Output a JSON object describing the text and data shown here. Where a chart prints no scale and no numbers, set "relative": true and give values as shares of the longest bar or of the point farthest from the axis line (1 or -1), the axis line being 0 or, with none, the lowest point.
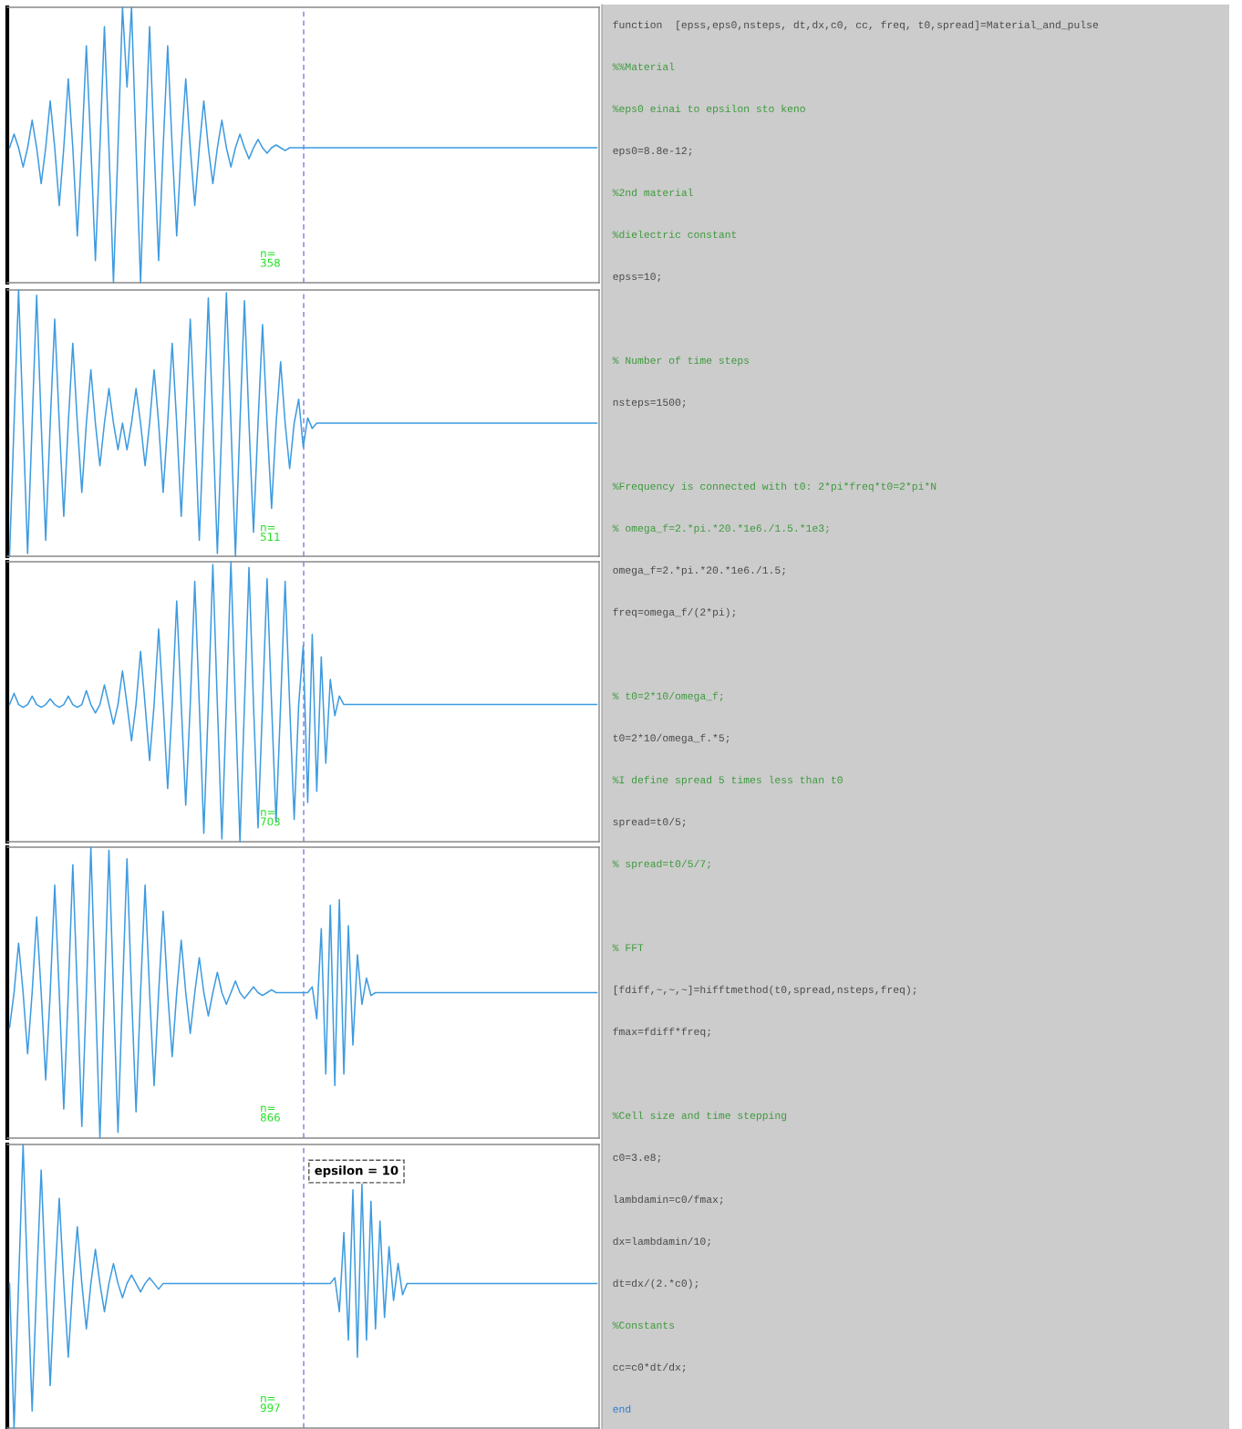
{
  "chart_data": [
    {
      "type": "line",
      "relative": true,
      "tick_labels": false,
      "categories": [
        null,
        null,
        null,
        null,
        null,
        null,
        null,
        null,
        null,
        null,
        null,
        null,
        null,
        null,
        null,
        null,
        null,
        null,
        null,
        null,
        null,
        null,
        null,
        null,
        null,
        null,
        null,
        null,
        null,
        null,
        null,
        null,
        null,
        null,
        null,
        null,
        null,
        null,
        null,
        null,
        null,
        null,
        null,
        null,
        null,
        null,
        null,
        null,
        null,
        null,
        null,
        null,
        null,
        null,
        null,
        null,
        null,
        null,
        null,
        null,
        null,
        null,
        null,
        null,
        null,
        null,
        null,
        null,
        null,
        null,
        null,
        null,
        null,
        null,
        null,
        null,
        null,
        null,
        null,
        null,
        null,
        null,
        null,
        null,
        null,
        null,
        null,
        null,
        null,
        null,
        null,
        null,
        null,
        null,
        null,
        null,
        null,
        null,
        null,
        null,
        null,
        null,
        null,
        null,
        null,
        null,
        null,
        null,
        null,
        null,
        null,
        null,
        null,
        null,
        null,
        null,
        null,
        null,
        null,
        null,
        null,
        null,
        null,
        null,
        null,
        null,
        null,
        null,
        null,
        null,
        null
      ],
      "series": [
        {
          "color": "#3d9be0",
          "values": [
            0.49,
            0.54,
            0.49,
            0.42,
            0.49,
            0.59,
            0.49,
            0.36,
            0.49,
            0.66,
            0.49,
            0.28,
            0.49,
            0.74,
            0.49,
            0.17,
            0.49,
            0.86,
            0.49,
            0.08,
            0.49,
            0.93,
            0.49,
            0,
            0.49,
            1,
            0.71,
            1,
            0.49,
            0,
            0.49,
            0.93,
            0.49,
            0.08,
            0.49,
            0.86,
            0.49,
            0.17,
            0.49,
            0.74,
            0.49,
            0.28,
            0.49,
            0.66,
            0.49,
            0.36,
            0.49,
            0.59,
            0.49,
            0.42,
            0.49,
            0.54,
            0.49,
            0.45,
            0.49,
            0.52,
            0.49,
            0.47,
            0.49,
            0.5,
            0.49,
            0.48,
            0.49,
            0.49,
            0.49,
            0.49,
            0.49,
            0.49,
            0.49,
            0.49,
            0.49,
            0.49,
            0.49,
            0.49,
            0.49,
            0.49,
            0.49,
            0.49,
            0.49,
            0.49,
            0.49,
            0.49,
            0.49,
            0.49,
            0.49,
            0.49,
            0.49,
            0.49,
            0.49,
            0.49,
            0.49,
            0.49,
            0.49,
            0.49,
            0.49,
            0.49,
            0.49,
            0.49,
            0.49,
            0.49,
            0.49,
            0.49,
            0.49,
            0.49,
            0.49,
            0.49,
            0.49,
            0.49,
            0.49,
            0.49,
            0.49,
            0.49,
            0.49,
            0.49,
            0.49,
            0.49,
            0.49,
            0.49,
            0.49,
            0.49,
            0.49,
            0.49,
            0.49,
            0.49,
            0.49,
            0.49,
            0.49,
            0.49,
            0.49,
            0.49,
            0.49
          ]
        }
      ],
      "annotations": [
        "n=\n358"
      ]
    },
    {
      "type": "line",
      "relative": true,
      "tick_labels": false,
      "categories": [
        null,
        null,
        null,
        null,
        null,
        null,
        null,
        null,
        null,
        null,
        null,
        null,
        null,
        null,
        null,
        null,
        null,
        null,
        null,
        null,
        null,
        null,
        null,
        null,
        null,
        null,
        null,
        null,
        null,
        null,
        null,
        null,
        null,
        null,
        null,
        null,
        null,
        null,
        null,
        null,
        null,
        null,
        null,
        null,
        null,
        null,
        null,
        null,
        null,
        null,
        null,
        null,
        null,
        null,
        null,
        null,
        null,
        null,
        null,
        null,
        null,
        null,
        null,
        null,
        null,
        null,
        null,
        null,
        null,
        null,
        null,
        null,
        null,
        null,
        null,
        null,
        null,
        null,
        null,
        null,
        null,
        null,
        null,
        null,
        null,
        null,
        null,
        null,
        null,
        null,
        null,
        null,
        null,
        null,
        null,
        null,
        null,
        null,
        null,
        null,
        null,
        null,
        null,
        null,
        null,
        null,
        null,
        null,
        null,
        null,
        null,
        null,
        null,
        null,
        null,
        null,
        null,
        null,
        null,
        null,
        null,
        null,
        null,
        null,
        null,
        null,
        null,
        null,
        null,
        null,
        null
      ],
      "series": [
        {
          "color": "#3d9be0",
          "values": [
            0,
            0.5,
            1,
            0.5,
            0.01,
            0.5,
            0.98,
            0.5,
            0.06,
            0.5,
            0.89,
            0.5,
            0.15,
            0.5,
            0.8,
            0.5,
            0.24,
            0.5,
            0.7,
            0.5,
            0.34,
            0.5,
            0.63,
            0.5,
            0.4,
            0.5,
            0.4,
            0.5,
            0.63,
            0.5,
            0.34,
            0.5,
            0.7,
            0.5,
            0.24,
            0.5,
            0.8,
            0.5,
            0.15,
            0.5,
            0.89,
            0.5,
            0.06,
            0.5,
            0.97,
            0.5,
            0.01,
            0.5,
            0.99,
            0.5,
            0,
            0.5,
            0.96,
            0.5,
            0.09,
            0.5,
            0.87,
            0.5,
            0.18,
            0.5,
            0.73,
            0.5,
            0.33,
            0.5,
            0.59,
            0.41,
            0.52,
            0.48,
            0.5,
            0.5,
            0.5,
            0.5,
            0.5,
            0.5,
            0.5,
            0.5,
            0.5,
            0.5,
            0.5,
            0.5,
            0.5,
            0.5,
            0.5,
            0.5,
            0.5,
            0.5,
            0.5,
            0.5,
            0.5,
            0.5,
            0.5,
            0.5,
            0.5,
            0.5,
            0.5,
            0.5,
            0.5,
            0.5,
            0.5,
            0.5,
            0.5,
            0.5,
            0.5,
            0.5,
            0.5,
            0.5,
            0.5,
            0.5,
            0.5,
            0.5,
            0.5,
            0.5,
            0.5,
            0.5,
            0.5,
            0.5,
            0.5,
            0.5,
            0.5,
            0.5,
            0.5,
            0.5,
            0.5,
            0.5,
            0.5,
            0.5,
            0.5,
            0.5,
            0.5,
            0.5,
            0.5
          ]
        }
      ],
      "annotations": [
        "n=\n511"
      ]
    },
    {
      "type": "line",
      "relative": true,
      "tick_labels": false,
      "categories": [
        null,
        null,
        null,
        null,
        null,
        null,
        null,
        null,
        null,
        null,
        null,
        null,
        null,
        null,
        null,
        null,
        null,
        null,
        null,
        null,
        null,
        null,
        null,
        null,
        null,
        null,
        null,
        null,
        null,
        null,
        null,
        null,
        null,
        null,
        null,
        null,
        null,
        null,
        null,
        null,
        null,
        null,
        null,
        null,
        null,
        null,
        null,
        null,
        null,
        null,
        null,
        null,
        null,
        null,
        null,
        null,
        null,
        null,
        null,
        null,
        null,
        null,
        null,
        null,
        null,
        null,
        null,
        null,
        null,
        null,
        null,
        null,
        null,
        null,
        null,
        null,
        null,
        null,
        null,
        null,
        null,
        null,
        null,
        null,
        null,
        null,
        null,
        null,
        null,
        null,
        null,
        null,
        null,
        null,
        null,
        null,
        null,
        null,
        null,
        null,
        null,
        null,
        null,
        null,
        null,
        null,
        null,
        null,
        null,
        null,
        null,
        null,
        null,
        null,
        null,
        null,
        null,
        null,
        null,
        null,
        null,
        null,
        null,
        null,
        null,
        null,
        null,
        null,
        null,
        null,
        null
      ],
      "series": [
        {
          "color": "#3d9be0",
          "values": [
            0.49,
            0.53,
            0.49,
            0.48,
            0.49,
            0.52,
            0.49,
            0.48,
            0.49,
            0.51,
            0.49,
            0.48,
            0.49,
            0.52,
            0.49,
            0.48,
            0.49,
            0.54,
            0.49,
            0.46,
            0.49,
            0.56,
            0.49,
            0.42,
            0.49,
            0.61,
            0.49,
            0.36,
            0.49,
            0.68,
            0.49,
            0.29,
            0.49,
            0.76,
            0.49,
            0.19,
            0.49,
            0.86,
            0.49,
            0.13,
            0.49,
            0.93,
            0.49,
            0.03,
            0.49,
            0.99,
            0.49,
            0.01,
            0.49,
            1,
            0.49,
            0,
            0.49,
            0.98,
            0.49,
            0.05,
            0.49,
            0.94,
            0.49,
            0.07,
            0.49,
            0.93,
            0.49,
            0.08,
            0.49,
            0.7,
            0.14,
            0.74,
            0.18,
            0.66,
            0.28,
            0.58,
            0.45,
            0.52,
            0.49,
            0.49,
            0.49,
            0.49,
            0.49,
            0.49,
            0.49,
            0.49,
            0.49,
            0.49,
            0.49,
            0.49,
            0.49,
            0.49,
            0.49,
            0.49,
            0.49,
            0.49,
            0.49,
            0.49,
            0.49,
            0.49,
            0.49,
            0.49,
            0.49,
            0.49,
            0.49,
            0.49,
            0.49,
            0.49,
            0.49,
            0.49,
            0.49,
            0.49,
            0.49,
            0.49,
            0.49,
            0.49,
            0.49,
            0.49,
            0.49,
            0.49,
            0.49,
            0.49,
            0.49,
            0.49,
            0.49,
            0.49,
            0.49,
            0.49,
            0.49,
            0.49,
            0.49,
            0.49,
            0.49,
            0.49,
            0.49
          ]
        }
      ],
      "annotations": [
        "n=\n703"
      ]
    },
    {
      "type": "line",
      "relative": true,
      "tick_labels": false,
      "categories": [
        null,
        null,
        null,
        null,
        null,
        null,
        null,
        null,
        null,
        null,
        null,
        null,
        null,
        null,
        null,
        null,
        null,
        null,
        null,
        null,
        null,
        null,
        null,
        null,
        null,
        null,
        null,
        null,
        null,
        null,
        null,
        null,
        null,
        null,
        null,
        null,
        null,
        null,
        null,
        null,
        null,
        null,
        null,
        null,
        null,
        null,
        null,
        null,
        null,
        null,
        null,
        null,
        null,
        null,
        null,
        null,
        null,
        null,
        null,
        null,
        null,
        null,
        null,
        null,
        null,
        null,
        null,
        null,
        null,
        null,
        null,
        null,
        null,
        null,
        null,
        null,
        null,
        null,
        null,
        null,
        null,
        null,
        null,
        null,
        null,
        null,
        null,
        null,
        null,
        null,
        null,
        null,
        null,
        null,
        null,
        null,
        null,
        null,
        null,
        null,
        null,
        null,
        null,
        null,
        null,
        null,
        null,
        null,
        null,
        null,
        null,
        null,
        null,
        null,
        null,
        null,
        null,
        null,
        null,
        null,
        null,
        null,
        null,
        null,
        null,
        null,
        null,
        null,
        null,
        null,
        null
      ],
      "series": [
        {
          "color": "#3d9be0",
          "values": [
            0.38,
            0.5,
            0.67,
            0.5,
            0.29,
            0.5,
            0.76,
            0.5,
            0.2,
            0.5,
            0.87,
            0.5,
            0.1,
            0.5,
            0.94,
            0.5,
            0.04,
            0.5,
            1,
            0.5,
            0,
            0.5,
            0.99,
            0.5,
            0.02,
            0.5,
            0.96,
            0.5,
            0.09,
            0.5,
            0.87,
            0.5,
            0.18,
            0.5,
            0.78,
            0.5,
            0.28,
            0.5,
            0.68,
            0.5,
            0.36,
            0.5,
            0.62,
            0.5,
            0.42,
            0.5,
            0.57,
            0.5,
            0.46,
            0.5,
            0.54,
            0.5,
            0.48,
            0.5,
            0.52,
            0.5,
            0.49,
            0.5,
            0.51,
            0.5,
            0.5,
            0.5,
            0.5,
            0.5,
            0.5,
            0.5,
            0.5,
            0.52,
            0.41,
            0.72,
            0.22,
            0.8,
            0.18,
            0.82,
            0.22,
            0.73,
            0.32,
            0.63,
            0.46,
            0.55,
            0.49,
            0.5,
            0.5,
            0.5,
            0.5,
            0.5,
            0.5,
            0.5,
            0.5,
            0.5,
            0.5,
            0.5,
            0.5,
            0.5,
            0.5,
            0.5,
            0.5,
            0.5,
            0.5,
            0.5,
            0.5,
            0.5,
            0.5,
            0.5,
            0.5,
            0.5,
            0.5,
            0.5,
            0.5,
            0.5,
            0.5,
            0.5,
            0.5,
            0.5,
            0.5,
            0.5,
            0.5,
            0.5,
            0.5,
            0.5,
            0.5,
            0.5,
            0.5,
            0.5,
            0.5,
            0.5,
            0.5,
            0.5,
            0.5,
            0.5,
            0.5
          ]
        }
      ],
      "annotations": [
        "n=\n866"
      ]
    },
    {
      "type": "line",
      "relative": true,
      "tick_labels": false,
      "categories": [
        null,
        null,
        null,
        null,
        null,
        null,
        null,
        null,
        null,
        null,
        null,
        null,
        null,
        null,
        null,
        null,
        null,
        null,
        null,
        null,
        null,
        null,
        null,
        null,
        null,
        null,
        null,
        null,
        null,
        null,
        null,
        null,
        null,
        null,
        null,
        null,
        null,
        null,
        null,
        null,
        null,
        null,
        null,
        null,
        null,
        null,
        null,
        null,
        null,
        null,
        null,
        null,
        null,
        null,
        null,
        null,
        null,
        null,
        null,
        null,
        null,
        null,
        null,
        null,
        null,
        null,
        null,
        null,
        null,
        null,
        null,
        null,
        null,
        null,
        null,
        null,
        null,
        null,
        null,
        null,
        null,
        null,
        null,
        null,
        null,
        null,
        null,
        null,
        null,
        null,
        null,
        null,
        null,
        null,
        null,
        null,
        null,
        null,
        null,
        null,
        null,
        null,
        null,
        null,
        null,
        null,
        null,
        null,
        null,
        null,
        null,
        null,
        null,
        null,
        null,
        null,
        null,
        null,
        null,
        null,
        null,
        null,
        null,
        null,
        null,
        null,
        null,
        null,
        null,
        null,
        null
      ],
      "series": [
        {
          "color": "#3d9be0",
          "values": [
            0.51,
            0,
            0.51,
            1,
            0.51,
            0.06,
            0.51,
            0.91,
            0.51,
            0.15,
            0.51,
            0.81,
            0.51,
            0.25,
            0.51,
            0.71,
            0.51,
            0.35,
            0.51,
            0.63,
            0.51,
            0.41,
            0.51,
            0.58,
            0.51,
            0.46,
            0.51,
            0.54,
            0.51,
            0.48,
            0.51,
            0.53,
            0.51,
            0.49,
            0.51,
            0.51,
            0.51,
            0.51,
            0.51,
            0.51,
            0.51,
            0.51,
            0.51,
            0.51,
            0.51,
            0.51,
            0.51,
            0.51,
            0.51,
            0.51,
            0.51,
            0.51,
            0.51,
            0.51,
            0.51,
            0.51,
            0.51,
            0.51,
            0.51,
            0.51,
            0.51,
            0.51,
            0.51,
            0.51,
            0.51,
            0.51,
            0.51,
            0.51,
            0.51,
            0.51,
            0.51,
            0.51,
            0.53,
            0.41,
            0.69,
            0.31,
            0.84,
            0.25,
            0.86,
            0.31,
            0.8,
            0.35,
            0.73,
            0.39,
            0.64,
            0.45,
            0.58,
            0.47,
            0.51,
            0.51,
            0.51,
            0.51,
            0.51,
            0.51,
            0.51,
            0.51,
            0.51,
            0.51,
            0.51,
            0.51,
            0.51,
            0.51,
            0.51,
            0.51,
            0.51,
            0.51,
            0.51,
            0.51,
            0.51,
            0.51,
            0.51,
            0.51,
            0.51,
            0.51,
            0.51,
            0.51,
            0.51,
            0.51,
            0.51,
            0.51,
            0.51,
            0.51,
            0.51,
            0.51,
            0.51,
            0.51,
            0.51,
            0.51,
            0.51,
            0.51,
            0.51
          ]
        }
      ],
      "annotations": [
        "n=\n997",
        "epsilon = 10"
      ]
    },
    {
      "type": "other",
      "annotations": [
        "function  [epss,eps0,nsteps, dt,dx,c0, cc, freq, t0,spread]=Material_and_pulse",
        "%%Material",
        "%eps0 einai to epsilon sto keno",
        "eps0=8.8e-12;",
        "%2nd material",
        "%dielectric constant",
        "epss=10;",
        null,
        "% Number of time steps",
        "nsteps=1500;",
        null,
        "%Frequency is connected with t0: 2*pi*freq*t0=2*pi*N",
        "% omega_f=2.*pi.*20.*1e6./1.5.*1e3;",
        "omega_f=2.*pi.*20.*1e6./1.5;",
        "freq=omega_f/(2*pi);",
        null,
        "% t0=2*10/omega_f;",
        "t0=2*10/omega_f.*5;",
        "%I define spread 5 times less than t0",
        "spread=t0/5;",
        "% spread=t0/5/7;",
        null,
        "% FFT",
        "[fdiff,~,~,~]=hifftmethod(t0,spread,nsteps,freq);",
        "fmax=fdiff*freq;",
        null,
        "%Cell size and time stepping",
        "c0=3.e8;",
        "lambdamin=c0/fmax;",
        "dx=lambdamin/10;",
        "dt=dx/(2.*c0);",
        "%Constants",
        "cc=c0*dt/dx;",
        "end"
      ],
      "colors": [
        "#4a4a4a",
        "#3c9a3c",
        "#3c9a3c",
        "#4a4a4a",
        "#3c9a3c",
        "#3c9a3c",
        "#4a4a4a",
        null,
        "#3c9a3c",
        "#4a4a4a",
        null,
        "#3c9a3c",
        "#3c9a3c",
        "#4a4a4a",
        "#4a4a4a",
        null,
        "#3c9a3c",
        "#4a4a4a",
        "#3c9a3c",
        "#4a4a4a",
        "#3c9a3c",
        null,
        "#3c9a3c",
        "#4a4a4a",
        "#4a4a4a",
        null,
        "#3c9a3c",
        "#4a4a4a",
        "#4a4a4a",
        "#4a4a4a",
        "#4a4a4a",
        "#3c9a3c",
        "#4a4a4a",
        "#2a7ad0"
      ]
    }
  ]
}
